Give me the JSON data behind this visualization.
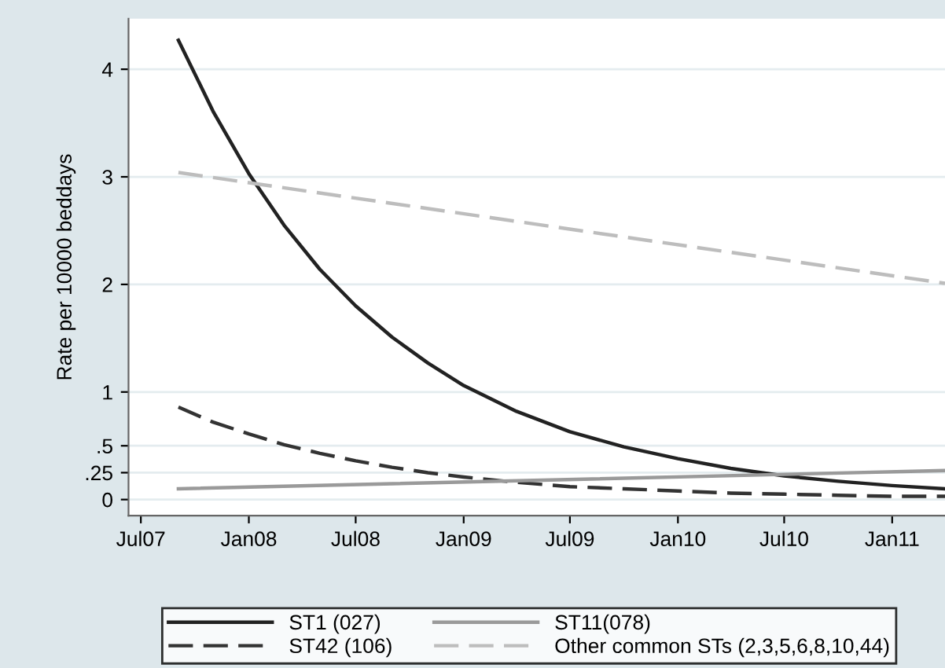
{
  "chart_data": {
    "type": "line",
    "ylabel": "Rate per 10000 beddays",
    "x": [
      "2007-09-03",
      "2007-11-01",
      "2008-01-01",
      "2008-03-01",
      "2008-05-01",
      "2008-07-01",
      "2008-09-01",
      "2008-11-01",
      "2009-01-01",
      "2009-04-01",
      "2009-07-01",
      "2009-10-01",
      "2010-01-01",
      "2010-04-01",
      "2010-07-01",
      "2010-10-01",
      "2011-01-01",
      "2011-04-01"
    ],
    "series": [
      {
        "name": "ST1 (027)",
        "color": "#222222",
        "line_style": "solid",
        "values": [
          4.27,
          3.61,
          3.03,
          2.55,
          2.14,
          1.8,
          1.51,
          1.27,
          1.06,
          0.82,
          0.63,
          0.49,
          0.38,
          0.29,
          0.22,
          0.17,
          0.13,
          0.1
        ]
      },
      {
        "name": "ST42 (106)",
        "color": "#333333",
        "line_style": "dashed",
        "values": [
          0.86,
          0.72,
          0.61,
          0.51,
          0.43,
          0.36,
          0.3,
          0.25,
          0.21,
          0.16,
          0.12,
          0.1,
          0.08,
          0.06,
          0.05,
          0.04,
          0.03,
          0.03
        ]
      },
      {
        "name": "ST11(078)",
        "color": "#9a9a9a",
        "line_style": "solid",
        "x": [
          "2007-09-03",
          "2011-04-01"
        ],
        "values": [
          0.1,
          0.27
        ]
      },
      {
        "name": "Other common STs (2,3,5,6,8,10,44)",
        "color": "#bdbdbd",
        "line_style": "dashed",
        "x": [
          "2007-09-03",
          "2011-04-01"
        ],
        "values": [
          3.04,
          2.01
        ]
      }
    ],
    "xlim": [
      "2007-06-10",
      "2011-04-01"
    ],
    "xticks": [
      {
        "value": "2007-07-01",
        "label": "Jul07"
      },
      {
        "value": "2008-01-01",
        "label": "Jan08"
      },
      {
        "value": "2008-07-01",
        "label": "Jul08"
      },
      {
        "value": "2009-01-01",
        "label": "Jan09"
      },
      {
        "value": "2009-07-01",
        "label": "Jul09"
      },
      {
        "value": "2010-01-01",
        "label": "Jan10"
      },
      {
        "value": "2010-07-01",
        "label": "Jul10"
      },
      {
        "value": "2011-01-01",
        "label": "Jan11"
      }
    ],
    "ylim": [
      -0.15,
      4.47
    ],
    "yticks": [
      0,
      {
        "value": 0.25,
        "label": ".25"
      },
      {
        "value": 0.5,
        "label": ".5"
      },
      1,
      2,
      3,
      4
    ],
    "grid": "y",
    "legend": "bottom",
    "marker": "none"
  }
}
